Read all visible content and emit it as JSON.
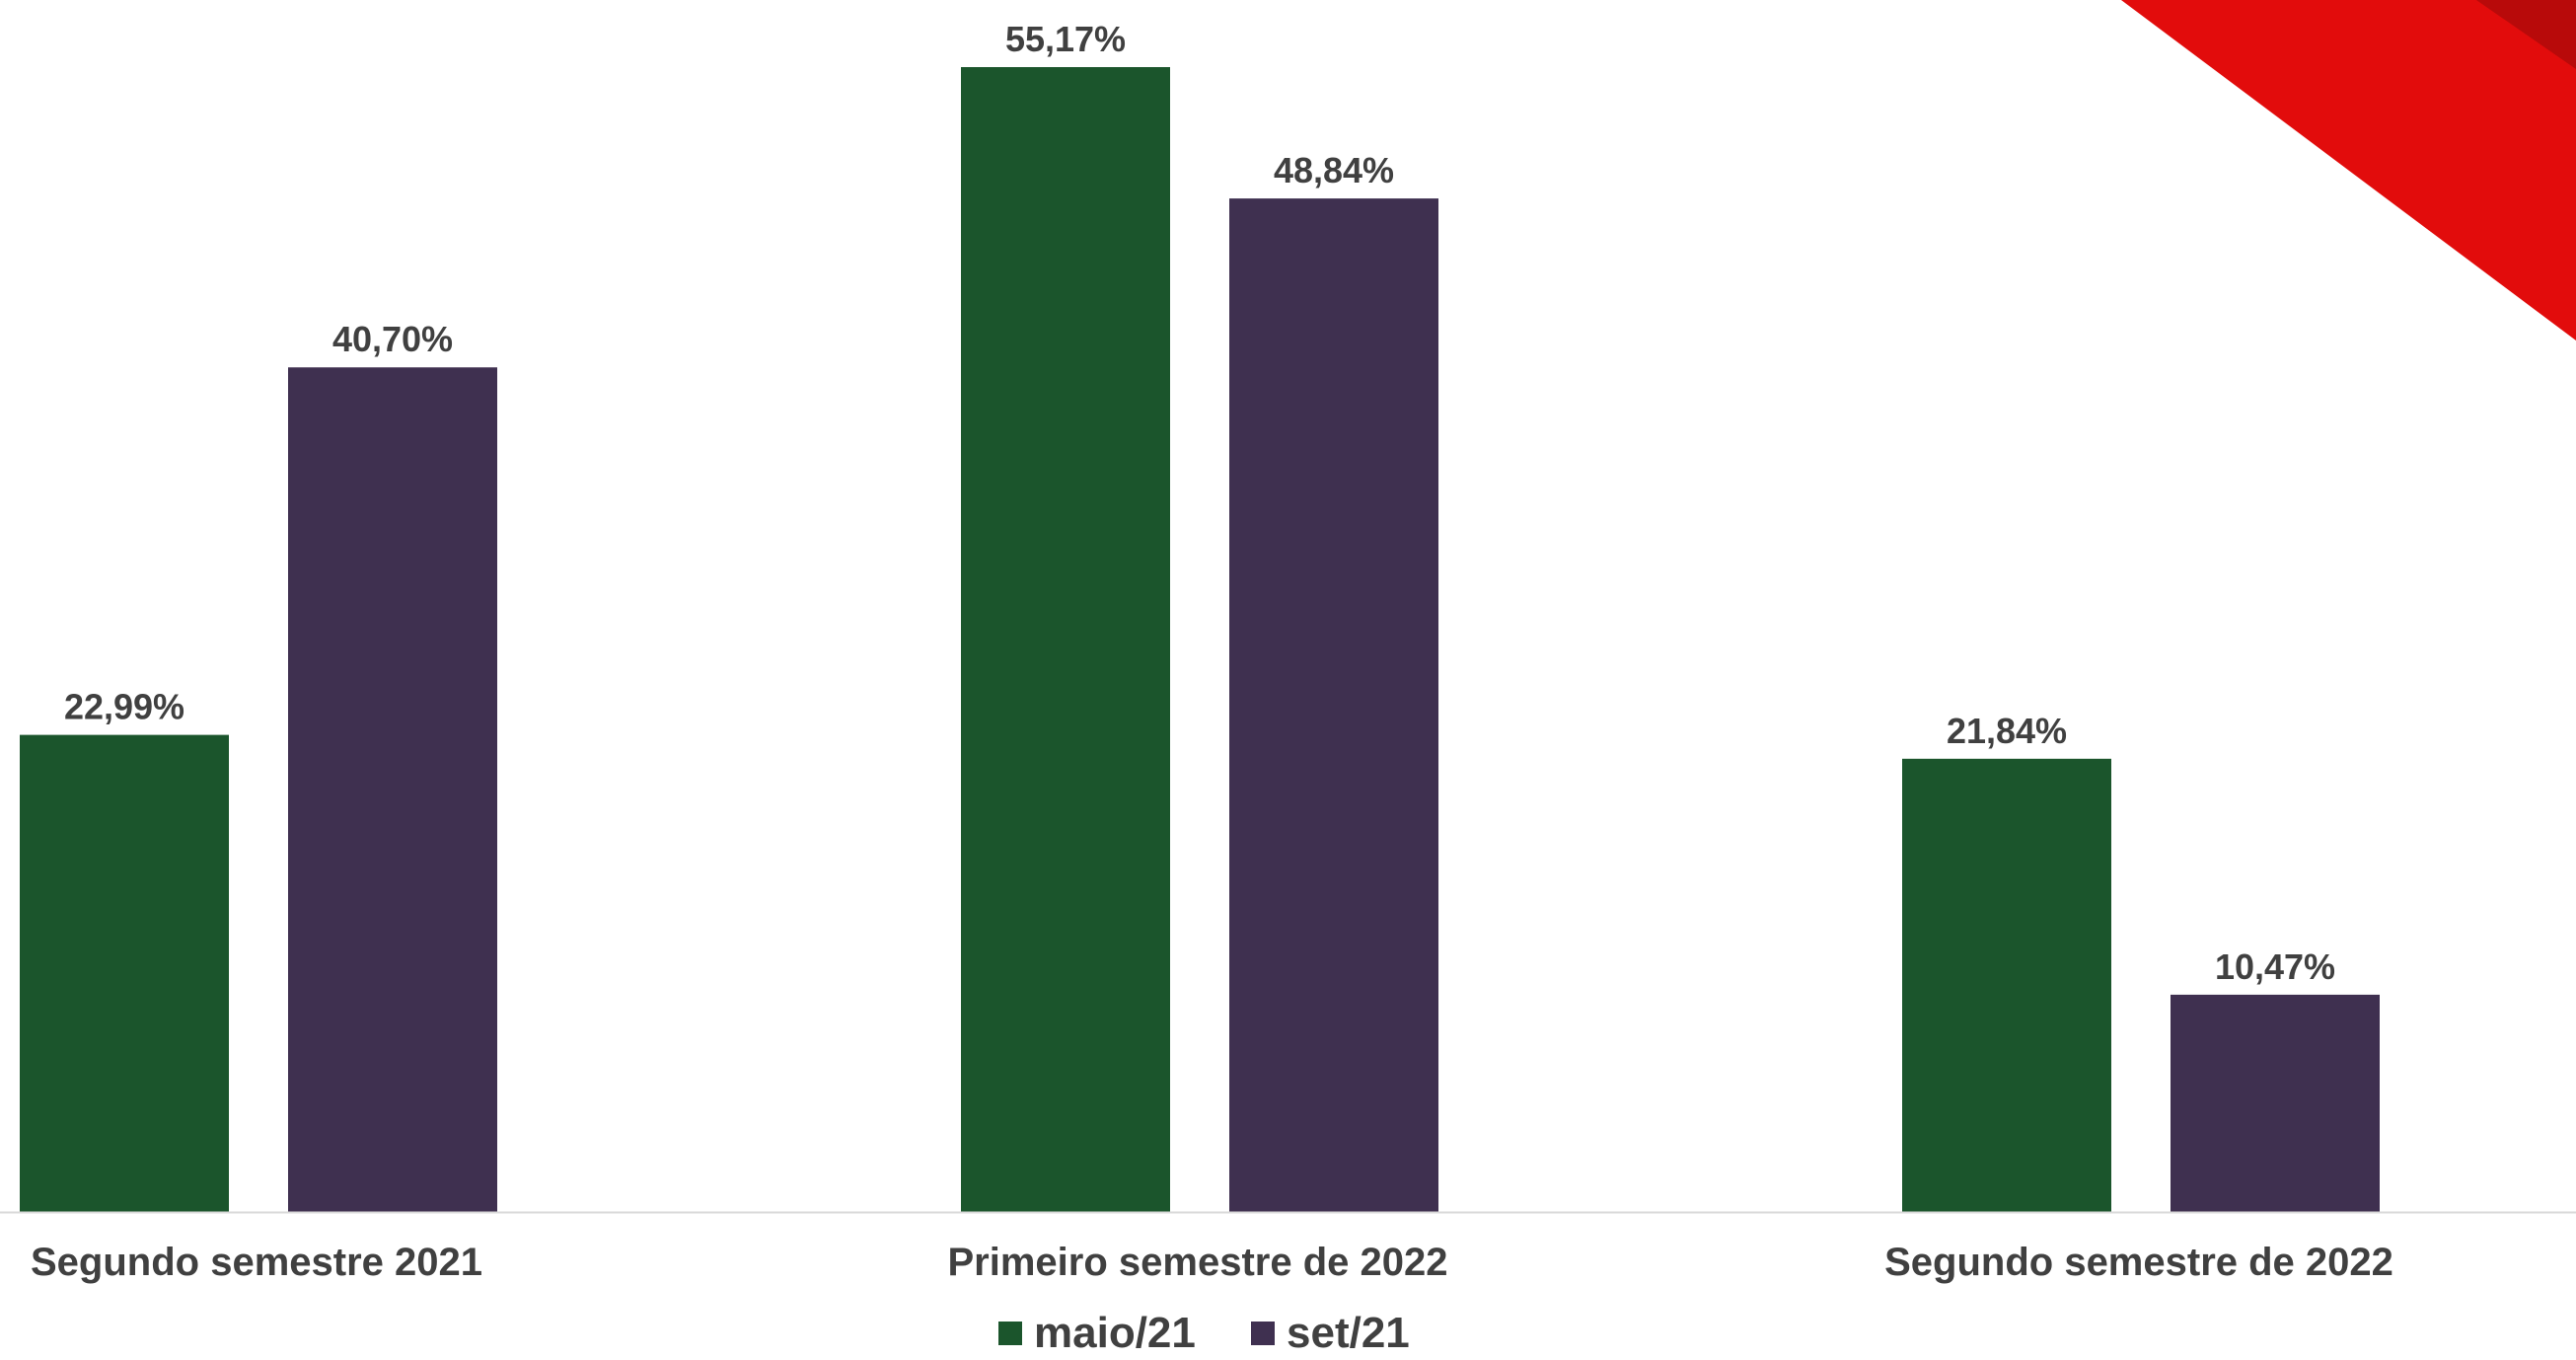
{
  "chart_data": {
    "type": "bar",
    "categories": [
      "Segundo semestre 2021",
      "Primeiro semestre de 2022",
      "Segundo semestre de 2022"
    ],
    "series": [
      {
        "name": "maio/21",
        "color": "#1b552c",
        "values": [
          22.99,
          55.17,
          21.84
        ]
      },
      {
        "name": "set/21",
        "color": "#3f3050",
        "values": [
          40.7,
          48.84,
          10.47
        ]
      }
    ],
    "data_labels": [
      [
        "22,99%",
        "55,17%",
        "21,84%"
      ],
      [
        "40,70%",
        "48,84%",
        "10,47%"
      ]
    ],
    "title": "",
    "xlabel": "",
    "ylabel": "",
    "ylim": [
      0,
      58.5
    ],
    "grid": false,
    "legend_position": "bottom",
    "colors": {
      "label_text": "#404040",
      "axis_line": "#d9d9d9",
      "ribbon": "#e20c0c",
      "ribbon_dark": "#b80a0a"
    }
  }
}
